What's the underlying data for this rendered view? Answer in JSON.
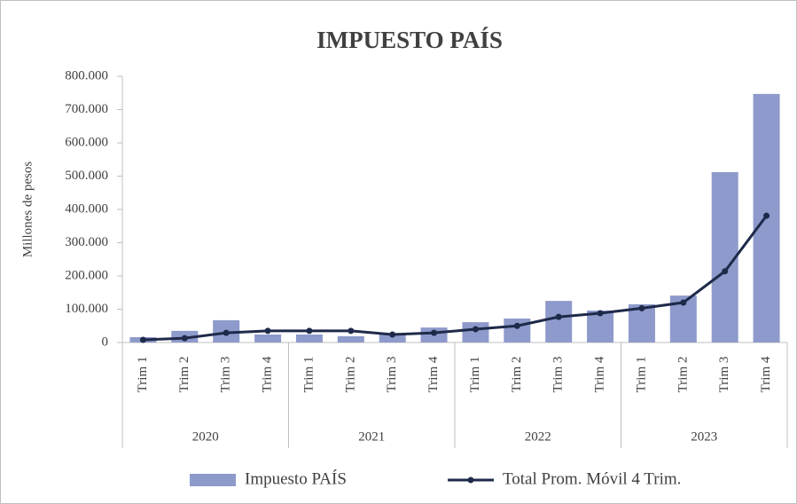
{
  "chart_data": {
    "type": "bar",
    "title": "IMPUESTO PAÍS",
    "y_label": "Millones de pesos",
    "categories": [
      "Trim 1",
      "Trim 2",
      "Trim 3",
      "Trim 4",
      "Trim 1",
      "Trim 2",
      "Trim 3",
      "Trim 4",
      "Trim 1",
      "Trim 2",
      "Trim 3",
      "Trim 4",
      "Trim 1",
      "Trim 2",
      "Trim 3",
      "Trim 4"
    ],
    "groups": [
      "2020",
      "2021",
      "2022",
      "2023"
    ],
    "series": [
      {
        "name": "Impuesto PAÍS",
        "type": "bar",
        "color": "#8e9acb",
        "values": [
          16000,
          35000,
          67000,
          24000,
          24000,
          19000,
          27000,
          45000,
          61000,
          72000,
          125000,
          96000,
          115000,
          141000,
          512000,
          747000
        ]
      },
      {
        "name": "Total Prom. Móvil 4 Trim.",
        "type": "line",
        "color": "#1f2a4a",
        "values": [
          8000,
          13000,
          29000,
          35000,
          35000,
          35000,
          24000,
          29000,
          40000,
          50000,
          77000,
          88000,
          103000,
          120000,
          214000,
          381000
        ]
      }
    ],
    "ylim": [
      0,
      800000
    ],
    "yticks": [
      0,
      {
        "value": 100000,
        "label": "100.000"
      },
      {
        "value": 200000,
        "label": "200.000"
      },
      {
        "value": 300000,
        "label": "300.000"
      },
      {
        "value": 400000,
        "label": "400.000"
      },
      {
        "value": 500000,
        "label": "500.000"
      },
      {
        "value": 600000,
        "label": "600.000"
      },
      {
        "value": 700000,
        "label": "700.000"
      },
      {
        "value": 800000,
        "label": "800.000"
      }
    ],
    "grid": false
  }
}
